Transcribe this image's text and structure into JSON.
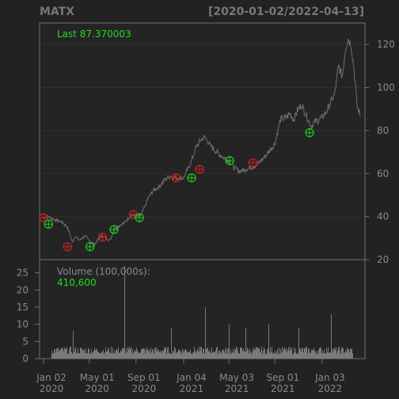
{
  "chart_data": {
    "type": "line",
    "title_left": "MATX",
    "title_right": "[2020-01-02/2022-04-13]",
    "last_label": "Last 87.370003",
    "volume_label": "Volume (100,000s):",
    "volume_value": "410,600",
    "price_ylim": [
      20,
      130
    ],
    "price_ticks": [
      20,
      40,
      60,
      80,
      100,
      120
    ],
    "volume_ylim": [
      0,
      27
    ],
    "volume_ticks": [
      0,
      5,
      10,
      15,
      20,
      25
    ],
    "x_ticks": [
      {
        "date": "2020-01-02",
        "line1": "Jan 02",
        "line2": "2020"
      },
      {
        "date": "2020-05-01",
        "line1": "May 01",
        "line2": "2020"
      },
      {
        "date": "2020-09-01",
        "line1": "Sep 01",
        "line2": "2020"
      },
      {
        "date": "2021-01-04",
        "line1": "Jan 04",
        "line2": "2021"
      },
      {
        "date": "2021-05-03",
        "line1": "May 03",
        "line2": "2021"
      },
      {
        "date": "2021-09-01",
        "line1": "Sep 01",
        "line2": "2021"
      },
      {
        "date": "2022-01-03",
        "line1": "Jan 03",
        "line2": "2022"
      }
    ],
    "price_series": [
      [
        "2020-01-02",
        39.5
      ],
      [
        "2020-01-15",
        40
      ],
      [
        "2020-02-01",
        38.5
      ],
      [
        "2020-02-20",
        37.5
      ],
      [
        "2020-03-05",
        35
      ],
      [
        "2020-03-18",
        28
      ],
      [
        "2020-03-25",
        31
      ],
      [
        "2020-04-05",
        29
      ],
      [
        "2020-04-20",
        31
      ],
      [
        "2020-05-01",
        29
      ],
      [
        "2020-05-15",
        27
      ],
      [
        "2020-06-01",
        31
      ],
      [
        "2020-06-15",
        30
      ],
      [
        "2020-06-25",
        29
      ],
      [
        "2020-07-05",
        34
      ],
      [
        "2020-07-20",
        36
      ],
      [
        "2020-08-01",
        37
      ],
      [
        "2020-08-15",
        40
      ],
      [
        "2020-08-25",
        41
      ],
      [
        "2020-09-05",
        40
      ],
      [
        "2020-09-15",
        41
      ],
      [
        "2020-09-25",
        45
      ],
      [
        "2020-10-01",
        48
      ],
      [
        "2020-10-15",
        52
      ],
      [
        "2020-11-01",
        54
      ],
      [
        "2020-11-15",
        57
      ],
      [
        "2020-12-01",
        59
      ],
      [
        "2020-12-15",
        58
      ],
      [
        "2021-01-04",
        58
      ],
      [
        "2021-01-15",
        62
      ],
      [
        "2021-01-25",
        66
      ],
      [
        "2021-02-05",
        72
      ],
      [
        "2021-02-20",
        76
      ],
      [
        "2021-03-01",
        77
      ],
      [
        "2021-03-15",
        73
      ],
      [
        "2021-04-01",
        70
      ],
      [
        "2021-04-15",
        68
      ],
      [
        "2021-05-03",
        66
      ],
      [
        "2021-05-15",
        63
      ],
      [
        "2021-06-01",
        61
      ],
      [
        "2021-06-15",
        62
      ],
      [
        "2021-07-01",
        63
      ],
      [
        "2021-07-15",
        64
      ],
      [
        "2021-08-01",
        67
      ],
      [
        "2021-08-15",
        70
      ],
      [
        "2021-09-01",
        74
      ],
      [
        "2021-09-15",
        85
      ],
      [
        "2021-10-01",
        86
      ],
      [
        "2021-10-10",
        88
      ],
      [
        "2021-10-20",
        85
      ],
      [
        "2021-11-01",
        90
      ],
      [
        "2021-11-10",
        92
      ],
      [
        "2021-11-25",
        86
      ],
      [
        "2021-12-05",
        82
      ],
      [
        "2021-12-15",
        84
      ],
      [
        "2022-01-03",
        86
      ],
      [
        "2022-01-15",
        89
      ],
      [
        "2022-01-25",
        93
      ],
      [
        "2022-02-05",
        97
      ],
      [
        "2022-02-15",
        110
      ],
      [
        "2022-02-25",
        105
      ],
      [
        "2022-03-05",
        118
      ],
      [
        "2022-03-12",
        123
      ],
      [
        "2022-03-20",
        120
      ],
      [
        "2022-03-28",
        108
      ],
      [
        "2022-04-05",
        91
      ],
      [
        "2022-04-13",
        87.37
      ]
    ],
    "buy_signals": [
      [
        "2020-01-15",
        36.5
      ],
      [
        "2020-05-03",
        26
      ],
      [
        "2020-07-05",
        34
      ],
      [
        "2020-09-10",
        39.5
      ],
      [
        "2021-01-25",
        58
      ],
      [
        "2021-05-05",
        66
      ],
      [
        "2021-12-01",
        79
      ]
    ],
    "sell_signals": [
      [
        "2020-01-02",
        39.5
      ],
      [
        "2020-03-05",
        26
      ],
      [
        "2020-06-05",
        30.5
      ],
      [
        "2020-08-25",
        41
      ],
      [
        "2020-12-15",
        58
      ],
      [
        "2021-02-15",
        62
      ],
      [
        "2021-07-05",
        65
      ]
    ],
    "volume_spikes": [
      [
        "2020-03-18",
        8
      ],
      [
        "2020-08-01",
        27
      ],
      [
        "2020-12-01",
        9
      ],
      [
        "2021-03-01",
        15
      ],
      [
        "2021-05-03",
        10
      ],
      [
        "2021-06-15",
        9
      ],
      [
        "2021-08-15",
        10
      ],
      [
        "2021-11-01",
        9
      ],
      [
        "2022-01-25",
        13
      ],
      [
        "2022-04-05",
        15
      ]
    ]
  }
}
